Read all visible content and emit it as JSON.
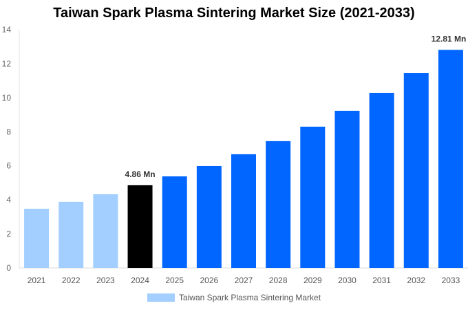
{
  "chart_data": {
    "type": "bar",
    "title": "Taiwan Spark Plasma Sintering Market Size (2021-2033)",
    "categories": [
      "2021",
      "2022",
      "2023",
      "2024",
      "2025",
      "2026",
      "2027",
      "2028",
      "2029",
      "2030",
      "2031",
      "2032",
      "2033"
    ],
    "series": [
      {
        "name": "Taiwan Spark Plasma Sintering Market",
        "values": [
          3.48,
          3.89,
          4.33,
          4.86,
          5.38,
          5.99,
          6.68,
          7.45,
          8.3,
          9.23,
          10.28,
          11.45,
          12.81
        ]
      }
    ],
    "ylim": [
      0,
      14
    ],
    "yticks": [
      0,
      2,
      4,
      6,
      8,
      10,
      12,
      14
    ],
    "data_labels": {
      "3": "4.86 Mn",
      "12": "12.81 Mn"
    },
    "colors": {
      "historic": "#a2cfff",
      "current": "#000000",
      "forecast": "#0066ff"
    },
    "grid": false,
    "legend_position": "bottom"
  }
}
